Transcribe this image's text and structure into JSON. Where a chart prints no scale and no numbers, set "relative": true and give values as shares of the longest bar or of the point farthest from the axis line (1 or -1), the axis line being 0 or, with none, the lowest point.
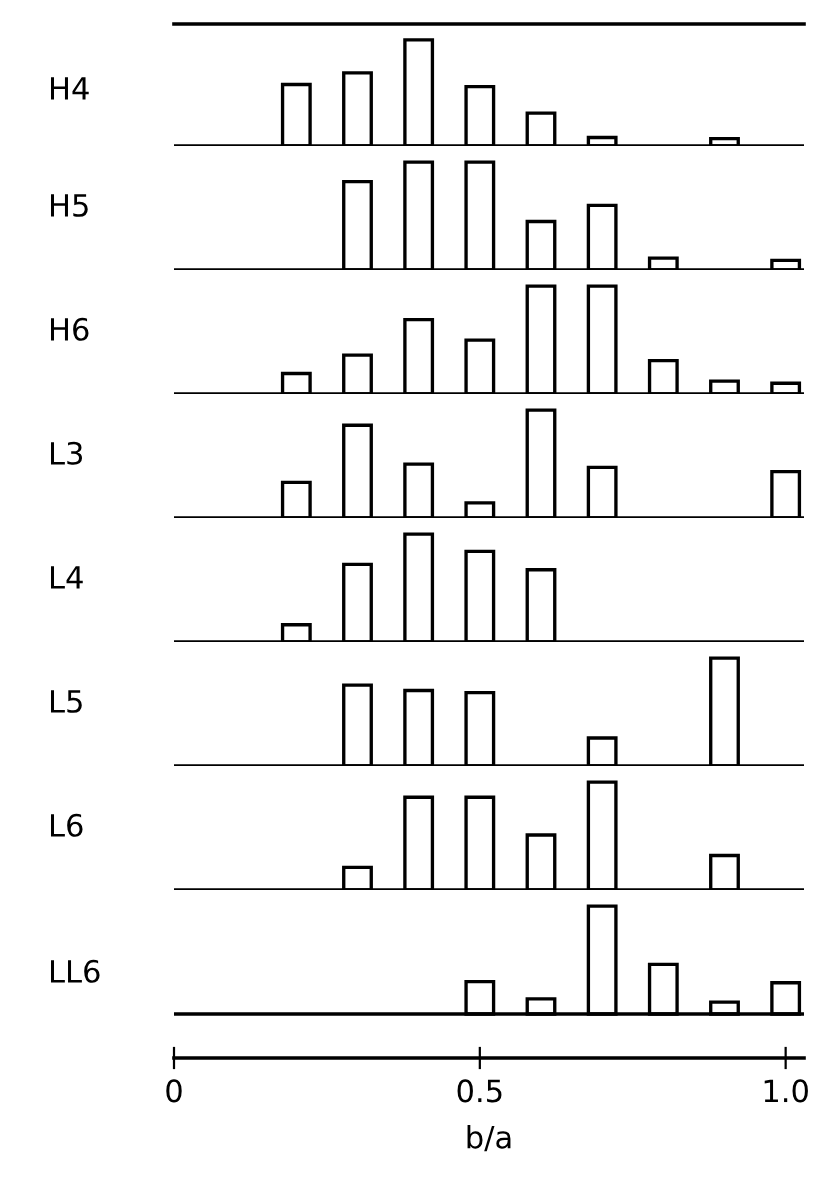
{
  "chart_data": [
    {
      "type": "bar",
      "title": "H4",
      "x": [
        0.2,
        0.3,
        0.4,
        0.5,
        0.6,
        0.7,
        0.9
      ],
      "values": [
        0.58,
        0.69,
        1,
        0.56,
        0.31,
        0.08,
        0.07
      ],
      "relative": true,
      "color": "#000000",
      "xlim": [
        0,
        1.03
      ],
      "tick_labels": false
    },
    {
      "type": "bar",
      "title": "H5",
      "x": [
        0.3,
        0.4,
        0.5,
        0.6,
        0.7,
        0.8,
        1.0
      ],
      "values": [
        0.82,
        1,
        1,
        0.45,
        0.6,
        0.11,
        0.09
      ],
      "relative": true,
      "color": "#000000",
      "xlim": [
        0,
        1.03
      ],
      "tick_labels": false
    },
    {
      "type": "bar",
      "title": "H6",
      "x": [
        0.2,
        0.3,
        0.4,
        0.5,
        0.6,
        0.7,
        0.8,
        0.9,
        1.0
      ],
      "values": [
        0.19,
        0.36,
        0.69,
        0.5,
        1,
        1,
        0.31,
        0.12,
        0.1
      ],
      "relative": true,
      "color": "#000000",
      "xlim": [
        0,
        1.03
      ],
      "tick_labels": false
    },
    {
      "type": "bar",
      "title": "L3",
      "x": [
        0.2,
        0.3,
        0.4,
        0.5,
        0.6,
        0.7,
        1.0
      ],
      "values": [
        0.33,
        0.86,
        0.5,
        0.14,
        1,
        0.47,
        0.43
      ],
      "relative": true,
      "color": "#000000",
      "xlim": [
        0,
        1.03
      ],
      "tick_labels": false
    },
    {
      "type": "bar",
      "title": "L4",
      "x": [
        0.2,
        0.3,
        0.4,
        0.5,
        0.6
      ],
      "values": [
        0.16,
        0.72,
        1,
        0.84,
        0.67
      ],
      "relative": true,
      "color": "#000000",
      "xlim": [
        0,
        1.03
      ],
      "tick_labels": false
    },
    {
      "type": "bar",
      "title": "L5",
      "x": [
        0.3,
        0.4,
        0.5,
        0.7,
        0.9
      ],
      "values": [
        0.75,
        0.7,
        0.68,
        0.26,
        1
      ],
      "relative": true,
      "color": "#000000",
      "xlim": [
        0,
        1.03
      ],
      "tick_labels": false
    },
    {
      "type": "bar",
      "title": "L6",
      "x": [
        0.3,
        0.4,
        0.5,
        0.6,
        0.7,
        0.9
      ],
      "values": [
        0.21,
        0.86,
        0.86,
        0.51,
        1,
        0.32
      ],
      "relative": true,
      "color": "#000000",
      "xlim": [
        0,
        1.03
      ],
      "tick_labels": false
    },
    {
      "type": "bar",
      "title": "LL6",
      "x": [
        0.5,
        0.6,
        0.7,
        0.8,
        0.9,
        1.0
      ],
      "values": [
        0.3,
        0.14,
        1,
        0.46,
        0.11,
        0.29
      ],
      "relative": true,
      "color": "#000000",
      "xlim": [
        0,
        1.03
      ],
      "xticks": [
        0,
        0.5,
        {
          "value": 1.0,
          "label": "1.0"
        }
      ],
      "xlabel": "b/a",
      "tick_labels": "x"
    }
  ]
}
